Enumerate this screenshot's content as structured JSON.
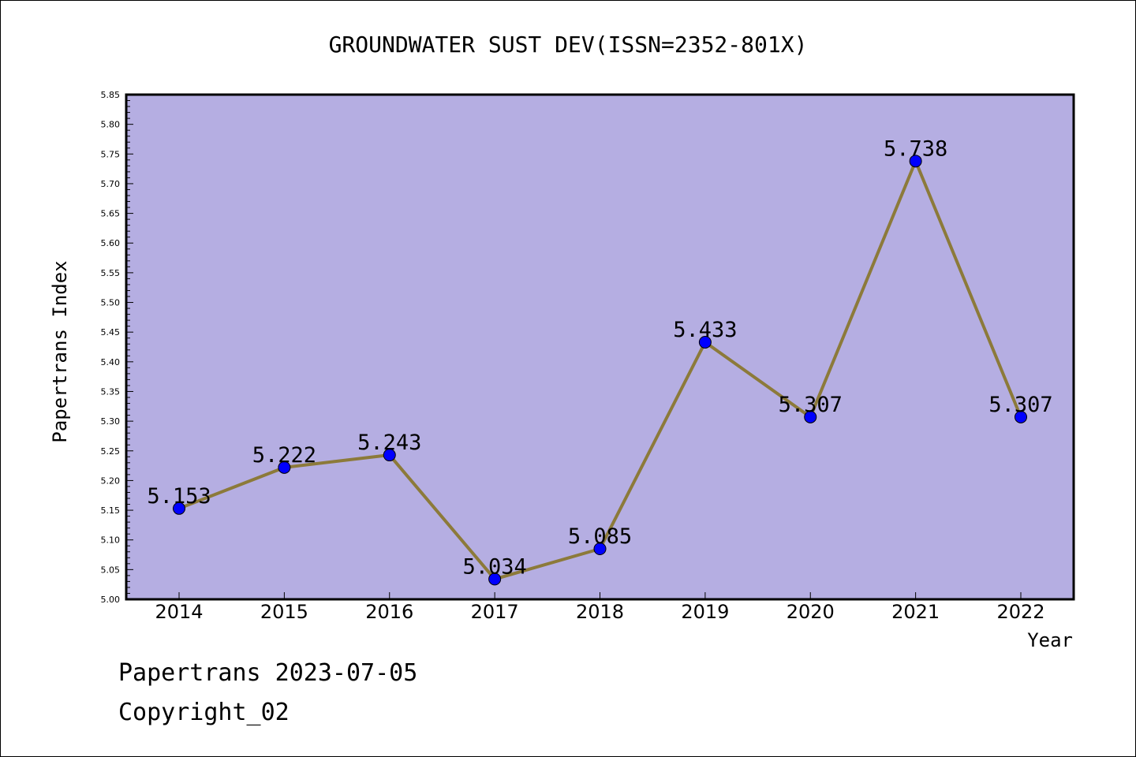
{
  "chart_data": {
    "type": "line",
    "title": "GROUNDWATER SUST DEV(ISSN=2352-801X)",
    "xlabel": "Year",
    "ylabel": "Papertrans Index",
    "categories": [
      "2014",
      "2015",
      "2016",
      "2017",
      "2018",
      "2019",
      "2020",
      "2021",
      "2022"
    ],
    "values": [
      5.153,
      5.222,
      5.243,
      5.034,
      5.085,
      5.433,
      5.307,
      5.738,
      5.307
    ],
    "data_labels": [
      "5.153",
      "5.222",
      "5.243",
      "5.034",
      "5.085",
      "5.433",
      "5.307",
      "5.738",
      "5.307"
    ],
    "ylim": [
      5.0,
      5.85
    ],
    "ytick_step": 0.05,
    "ytick_labels": [
      "5.00",
      "5.05",
      "5.10",
      "5.15",
      "5.20",
      "5.25",
      "5.30",
      "5.35",
      "5.40",
      "5.45",
      "5.50",
      "5.55",
      "5.60",
      "5.65",
      "5.70",
      "5.75",
      "5.80",
      "5.85"
    ],
    "grid": false,
    "colors": {
      "plot_background": "#b5aee2",
      "line": "#8c7a3a",
      "marker": "#0000ff"
    }
  },
  "footer": {
    "line1": "Papertrans 2023-07-05",
    "line2": "Copyright_02"
  }
}
